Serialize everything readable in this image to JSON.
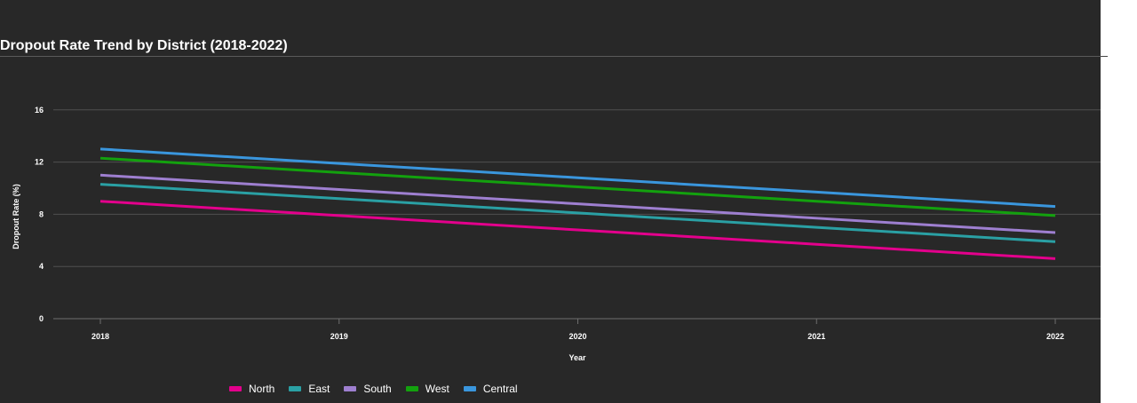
{
  "chart_data": {
    "type": "line",
    "title": "Dropout Rate Trend by District (2018-2022)",
    "xlabel": "Year",
    "ylabel": "Dropout Rate (%)",
    "x": [
      "2018",
      "2019",
      "2020",
      "2021",
      "2022"
    ],
    "yticks": [
      "0",
      "4",
      "8",
      "12",
      "16"
    ],
    "ylim": [
      0,
      19
    ],
    "grid": true,
    "legend_position": "bottom-left",
    "series": [
      {
        "name": "North",
        "color": "#e3008c",
        "values": [
          9.0,
          7.9,
          6.8,
          5.7,
          4.6
        ]
      },
      {
        "name": "East",
        "color": "#2aa0a4",
        "values": [
          10.3,
          9.2,
          8.1,
          7.0,
          5.9
        ]
      },
      {
        "name": "South",
        "color": "#9e7fd0",
        "values": [
          11.0,
          9.9,
          8.8,
          7.7,
          6.6
        ]
      },
      {
        "name": "West",
        "color": "#13a10e",
        "values": [
          12.3,
          11.2,
          10.1,
          9.0,
          7.9
        ]
      },
      {
        "name": "Central",
        "color": "#3a96dd",
        "values": [
          13.0,
          11.9,
          10.8,
          9.7,
          8.6
        ]
      }
    ]
  }
}
